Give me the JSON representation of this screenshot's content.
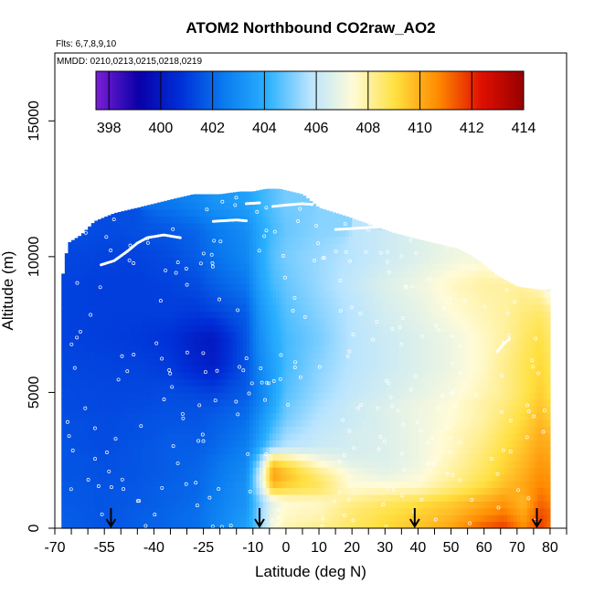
{
  "chart_data": {
    "type": "heatmap",
    "title": "ATOM2 Northbound CO2raw_AO2",
    "notes": [
      "Flts: 6,7,8,9,10",
      "MMDD: 0210,0213,0215,0218,0219"
    ],
    "xlabel": "Latitude (deg N)",
    "ylabel": "Altitude (m)",
    "xlim": [
      -70,
      85
    ],
    "ylim": [
      0,
      17500
    ],
    "x_ticks": [
      -70,
      -65,
      -60,
      -55,
      -50,
      -45,
      -40,
      -35,
      -30,
      -25,
      -20,
      -15,
      -10,
      -5,
      0,
      5,
      10,
      15,
      20,
      25,
      30,
      35,
      40,
      45,
      50,
      55,
      60,
      65,
      70,
      75,
      80,
      85
    ],
    "x_tick_labels": [
      -70,
      -55,
      -40,
      -25,
      -10,
      0,
      10,
      20,
      30,
      40,
      50,
      60,
      70,
      80
    ],
    "y_ticks": [
      0,
      5000,
      10000,
      15000
    ],
    "y_tick_labels": [
      "0",
      "5000",
      "10000",
      "15000"
    ],
    "colorbar": {
      "min": 397.5,
      "max": 414,
      "ticks": [
        398,
        400,
        402,
        404,
        406,
        408,
        410,
        412,
        414
      ],
      "stops": [
        "#7a1fd6",
        "#0a00a8",
        "#0030d8",
        "#0a7bf0",
        "#2ab0ff",
        "#b8e4ff",
        "#fffbd8",
        "#ffe040",
        "#ff8a00",
        "#e01000",
        "#980000"
      ]
    },
    "field": {
      "lat_bins": [
        -68,
        -55,
        -45,
        -35,
        -27,
        -22,
        -12,
        -8,
        -4,
        0,
        10,
        20,
        30,
        40,
        50,
        60,
        66,
        72,
        77,
        80
      ],
      "alt_bins": [
        0,
        500,
        1000,
        1500,
        2000,
        2500,
        3000,
        3500,
        4000,
        4500,
        5000,
        6000,
        7000,
        8000,
        9000,
        10000,
        11000,
        12000
      ],
      "values": [
        [
          401.8,
          401.6,
          401.8,
          402.0,
          402.2,
          402.6,
          403.6,
          405.0,
          407.2,
          407.8,
          408.2,
          408.6,
          409.2,
          409.6,
          410.2,
          411.4,
          411.8,
          410.6,
          411.8,
          411.0
        ],
        [
          401.8,
          401.6,
          401.8,
          402.0,
          402.2,
          402.6,
          403.4,
          405.2,
          407.0,
          407.6,
          407.8,
          408.6,
          409.0,
          409.4,
          409.8,
          410.6,
          411.0,
          410.2,
          411.6,
          411.2
        ],
        [
          401.7,
          401.6,
          401.7,
          401.9,
          402.1,
          402.5,
          403.2,
          405.0,
          406.8,
          407.4,
          407.6,
          408.2,
          408.6,
          409.0,
          409.4,
          410.0,
          410.4,
          409.8,
          411.2,
          410.8
        ],
        [
          401.7,
          401.6,
          401.7,
          401.9,
          402.0,
          402.4,
          403.2,
          406.0,
          409.6,
          409.2,
          408.8,
          407.4,
          407.6,
          407.6,
          408.4,
          409.2,
          409.8,
          410.2,
          410.8,
          410.6
        ],
        [
          401.6,
          401.5,
          401.6,
          401.8,
          402.0,
          402.3,
          403.0,
          406.2,
          410.4,
          409.8,
          408.4,
          407.2,
          406.8,
          407.2,
          408.0,
          408.8,
          409.4,
          410.0,
          410.6,
          410.4
        ],
        [
          401.6,
          401.5,
          401.6,
          401.8,
          401.9,
          402.2,
          402.8,
          405.2,
          409.2,
          408.6,
          407.2,
          406.6,
          406.6,
          407.0,
          407.8,
          408.6,
          409.2,
          409.8,
          410.4,
          410.2
        ],
        [
          401.6,
          401.4,
          401.6,
          401.8,
          401.8,
          402.0,
          402.6,
          403.8,
          405.2,
          405.8,
          406.2,
          406.4,
          406.6,
          407.0,
          407.6,
          408.4,
          409.0,
          409.6,
          410.2,
          410.0
        ],
        [
          401.5,
          401.4,
          401.5,
          401.7,
          401.7,
          401.9,
          402.4,
          403.4,
          404.6,
          405.4,
          406.0,
          406.4,
          406.6,
          407.0,
          407.6,
          408.2,
          408.8,
          409.4,
          410.0,
          409.8
        ],
        [
          401.5,
          401.4,
          401.5,
          401.6,
          401.6,
          401.8,
          402.2,
          403.2,
          404.2,
          405.0,
          405.8,
          406.2,
          406.6,
          407.0,
          407.4,
          408.0,
          408.6,
          409.2,
          409.8,
          409.4
        ],
        [
          401.4,
          401.3,
          401.4,
          401.5,
          401.5,
          401.6,
          402.0,
          402.8,
          403.8,
          404.8,
          405.6,
          406.2,
          406.6,
          407.0,
          407.4,
          408.0,
          408.4,
          409.0,
          409.6,
          409.2
        ],
        [
          401.4,
          401.3,
          401.3,
          401.4,
          401.3,
          401.2,
          401.8,
          402.6,
          403.6,
          404.6,
          405.4,
          406.0,
          406.4,
          406.8,
          407.2,
          407.8,
          408.2,
          408.8,
          409.4,
          409.0
        ],
        [
          401.3,
          401.2,
          401.2,
          401.0,
          400.4,
          400.2,
          401.6,
          402.8,
          403.6,
          404.4,
          405.2,
          405.8,
          406.2,
          406.6,
          407.0,
          407.6,
          408.2,
          408.8,
          409.2,
          408.8
        ],
        [
          401.2,
          401.1,
          401.0,
          400.8,
          400.2,
          400.0,
          401.6,
          403.0,
          403.8,
          404.4,
          405.0,
          405.8,
          406.2,
          406.6,
          407.0,
          407.6,
          408.0,
          408.6,
          409.0,
          408.6
        ],
        [
          401.2,
          401.1,
          401.1,
          401.1,
          401.0,
          401.2,
          401.8,
          403.2,
          404.0,
          404.6,
          405.2,
          405.8,
          406.4,
          406.8,
          407.4,
          407.8,
          408.0,
          408.4,
          408.6,
          408.2
        ],
        [
          401.2,
          401.1,
          401.1,
          401.2,
          401.4,
          401.8,
          402.4,
          403.6,
          404.4,
          404.8,
          405.4,
          406.0,
          406.6,
          407.0,
          407.6,
          408.0,
          408.0,
          408.0,
          407.6,
          406.6
        ],
        [
          401.3,
          401.2,
          401.2,
          401.4,
          401.8,
          402.2,
          402.8,
          403.8,
          404.6,
          405.0,
          405.4,
          405.8,
          406.2,
          406.6,
          407.0,
          407.2,
          406.8,
          null,
          null,
          null
        ],
        [
          401.5,
          401.4,
          401.5,
          401.7,
          402.0,
          402.4,
          403.0,
          403.8,
          404.4,
          404.8,
          405.2,
          null,
          null,
          null,
          null,
          null,
          null,
          null,
          null,
          null
        ],
        [
          null,
          null,
          null,
          402.4,
          402.8,
          403.2,
          403.6,
          404.2,
          404.6,
          405.0,
          null,
          null,
          null,
          null,
          null,
          null,
          null,
          null,
          null,
          null
        ]
      ]
    },
    "coverage": {
      "max_alt_by_lat": [
        [
          -68,
          9000
        ],
        [
          -66,
          10500
        ],
        [
          -62,
          10800
        ],
        [
          -58,
          11300
        ],
        [
          -52,
          11600
        ],
        [
          -45,
          11800
        ],
        [
          -35,
          12100
        ],
        [
          -28,
          12300
        ],
        [
          -20,
          12300
        ],
        [
          -14,
          12400
        ],
        [
          -10,
          12400
        ],
        [
          -6,
          12500
        ],
        [
          -2,
          12500
        ],
        [
          5,
          12300
        ],
        [
          10,
          11800
        ],
        [
          18,
          11500
        ],
        [
          25,
          11200
        ],
        [
          32,
          10900
        ],
        [
          38,
          10700
        ],
        [
          45,
          10500
        ],
        [
          52,
          10300
        ],
        [
          58,
          9900
        ],
        [
          64,
          9300
        ],
        [
          70,
          8900
        ],
        [
          76,
          8800
        ],
        [
          80,
          8800
        ]
      ],
      "min_alt": 0
    },
    "flight_tracks": [
      [
        [
          -56,
          9700
        ],
        [
          -52,
          9850
        ],
        [
          -48,
          10200
        ],
        [
          -45,
          10500
        ],
        [
          -42,
          10700
        ],
        [
          -37,
          10800
        ],
        [
          -32,
          10700
        ]
      ],
      [
        [
          -22,
          11300
        ],
        [
          -15,
          11350
        ],
        [
          -12,
          11320
        ]
      ],
      [
        [
          -4,
          11850
        ],
        [
          0,
          11900
        ],
        [
          5,
          11950
        ],
        [
          8,
          11920
        ]
      ],
      [
        [
          15,
          11000
        ],
        [
          22,
          11050
        ],
        [
          28,
          11100
        ]
      ],
      [
        [
          -12,
          11950
        ],
        [
          -8,
          11980
        ]
      ],
      [
        [
          64,
          6500
        ],
        [
          66,
          6800
        ],
        [
          68,
          7000
        ]
      ]
    ],
    "arrows_lat": [
      -53,
      -8,
      39,
      76
    ]
  }
}
